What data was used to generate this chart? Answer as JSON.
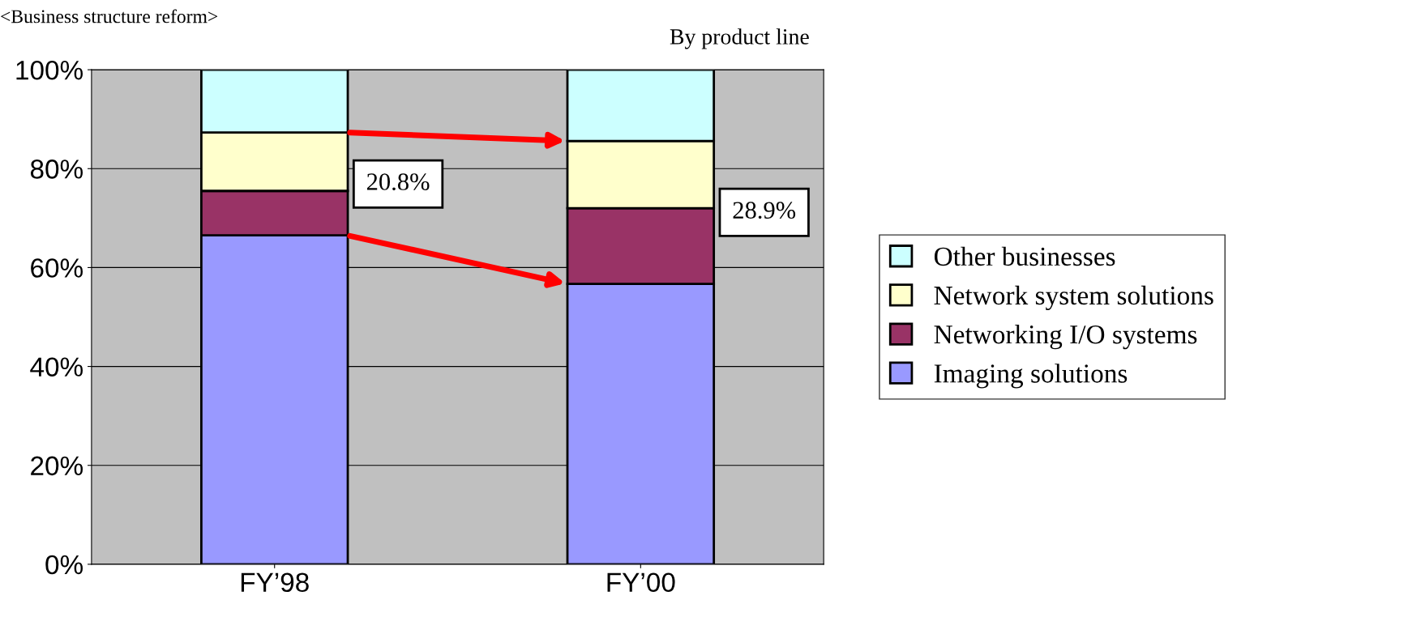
{
  "chart_data": {
    "type": "bar",
    "stacked": true,
    "title": "<Business structure reform>",
    "subtitle": "By product line",
    "categories": [
      "FY’98",
      "FY’00"
    ],
    "series": [
      {
        "name": "Imaging solutions",
        "color": "#9999ff",
        "values": [
          66.5,
          56.7
        ]
      },
      {
        "name": "Networking I/O systems",
        "color": "#993366",
        "values": [
          9.0,
          15.3
        ]
      },
      {
        "name": "Network system solutions",
        "color": "#ffffcc",
        "values": [
          11.8,
          13.6
        ]
      },
      {
        "name": "Other businesses",
        "color": "#ccffff",
        "values": [
          12.7,
          14.4
        ]
      }
    ],
    "ylim": [
      0,
      100
    ],
    "yticks": [
      {
        "value": 0,
        "label": "0%"
      },
      {
        "value": 20,
        "label": "20%"
      },
      {
        "value": 40,
        "label": "40%"
      },
      {
        "value": 60,
        "label": "60%"
      },
      {
        "value": 80,
        "label": "80%"
      },
      {
        "value": 100,
        "label": "100%"
      }
    ],
    "grid": "y",
    "legend": "right",
    "annotations": [
      "20.8%",
      "28.9%"
    ]
  }
}
